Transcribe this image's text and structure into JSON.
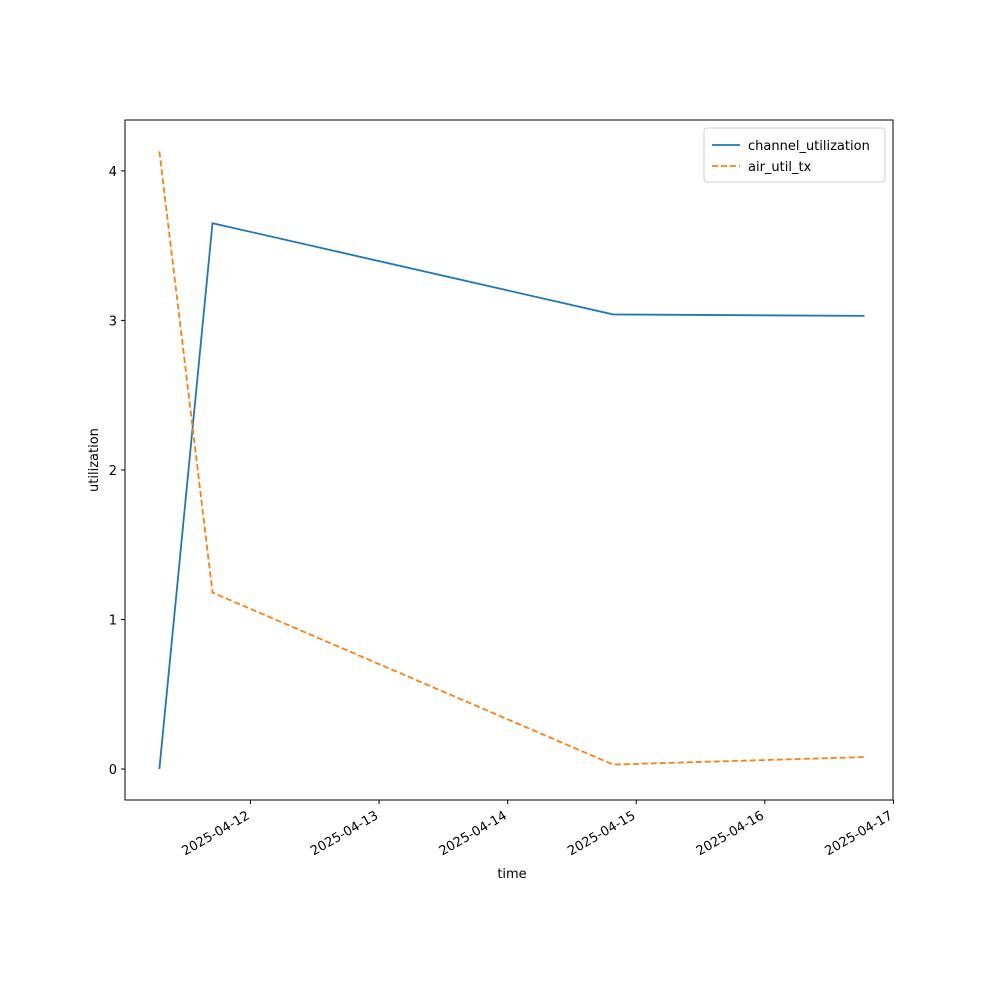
{
  "chart_data": {
    "type": "line",
    "x_label": "time",
    "y_label": "utilization",
    "x": [
      "2025-04-11T07:00",
      "2025-04-11T16:55",
      "2025-04-14T19:40",
      "2025-04-16T18:36"
    ],
    "series": [
      {
        "name": "channel_utilization",
        "color": "#1f77b4",
        "dash": "solid",
        "values": [
          0,
          3.65,
          3.04,
          3.03
        ]
      },
      {
        "name": "air_util_tx",
        "color": "#ff7f0e",
        "dash": "dashed",
        "values": [
          4.13,
          1.18,
          0.03,
          0.08
        ]
      }
    ],
    "xlim": [
      "2025-04-11T00:35",
      "2025-04-16T23:55"
    ],
    "xticks": [
      "2025-04-12",
      "2025-04-13",
      "2025-04-14",
      "2025-04-15",
      "2025-04-16",
      "2025-04-17"
    ],
    "ylim": [
      -0.207,
      4.34
    ],
    "yticks": [
      0,
      1,
      2,
      3,
      4
    ],
    "grid": false,
    "legend": "upper right"
  }
}
